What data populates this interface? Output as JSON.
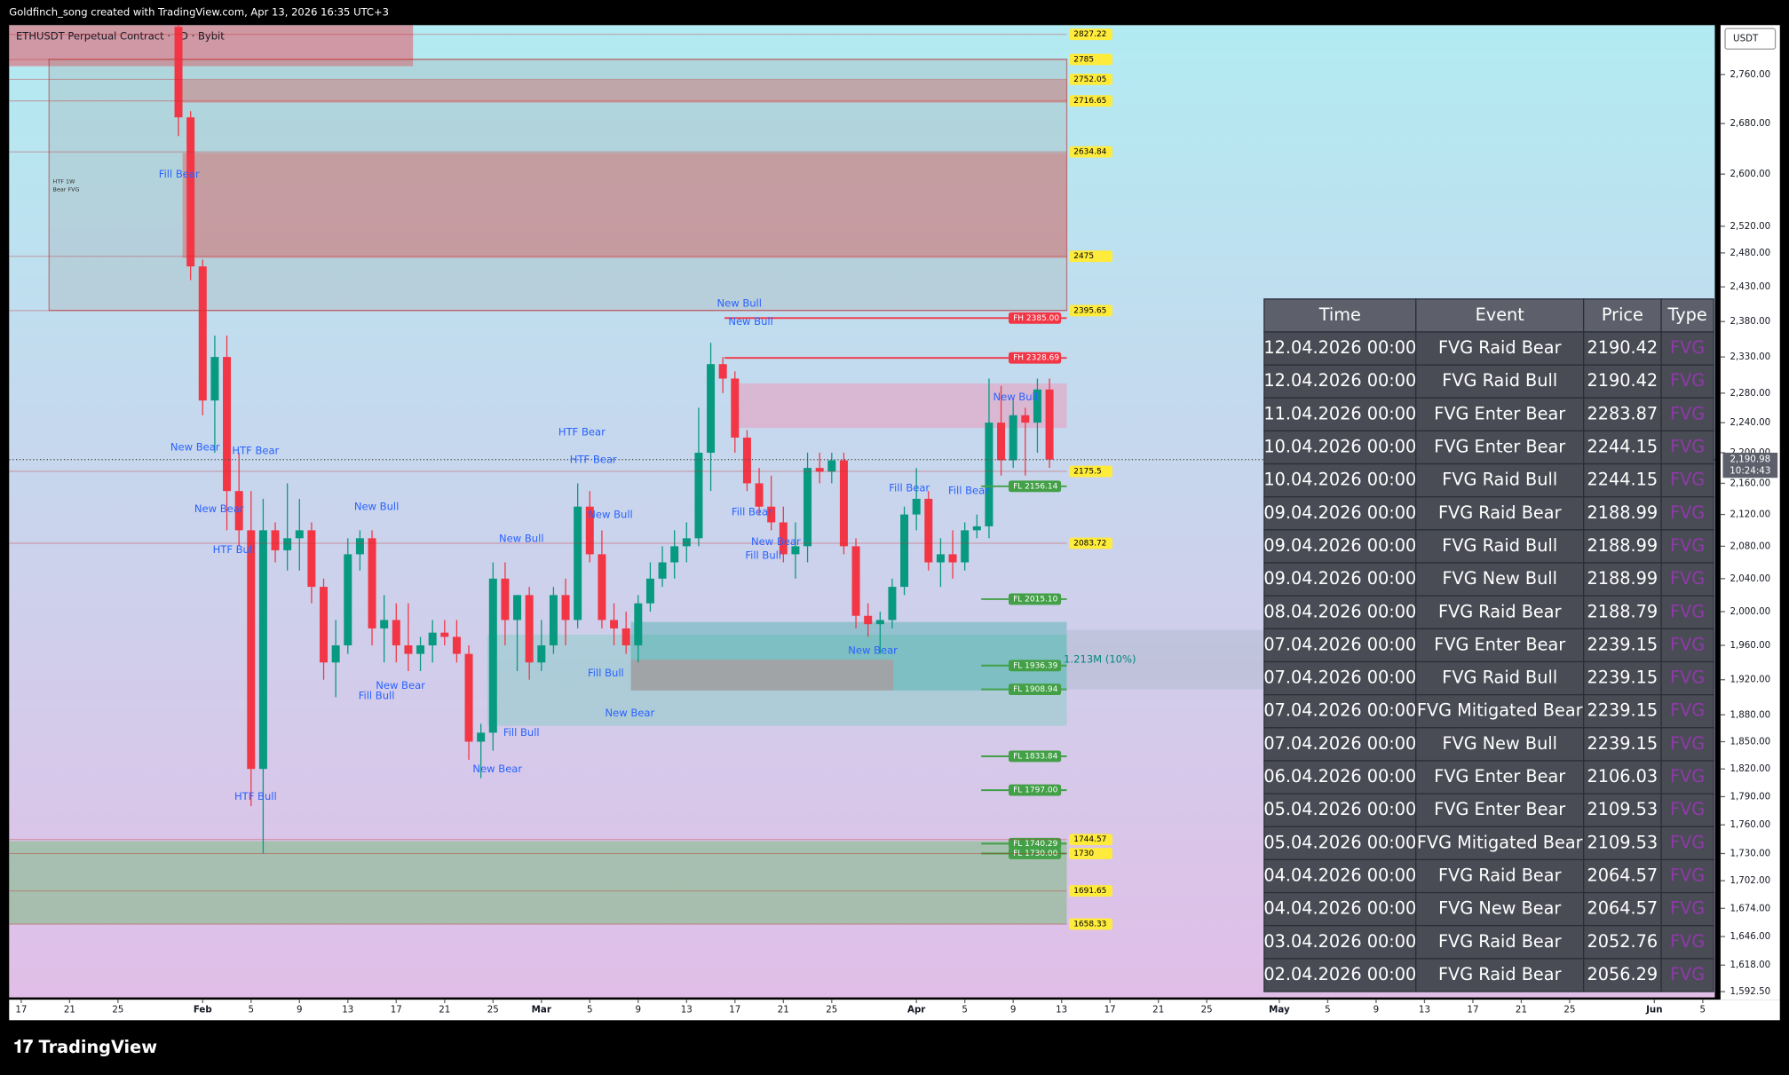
{
  "header": {
    "credit": "Goldfinch_song created with TradingView.com, Apr 13, 2026 16:35 UTC+3",
    "symbol": "ETHUSDT Perpetual Contract · 1D · Bybit",
    "currency": "USDT",
    "brand": "TradingView"
  },
  "chart_data": {
    "type": "candlestick",
    "log": true,
    "ylim": [
      1587,
      2843
    ],
    "xlim": [
      "2026-01-16",
      "2026-06-06"
    ],
    "up_color": "#089981",
    "down_color": "#f23645",
    "x": [
      "2026-01-30",
      "2026-01-31",
      "2026-02-01",
      "2026-02-02",
      "2026-02-03",
      "2026-02-04",
      "2026-02-05",
      "2026-02-06",
      "2026-02-07",
      "2026-02-08",
      "2026-02-09",
      "2026-02-10",
      "2026-02-11",
      "2026-02-12",
      "2026-02-13",
      "2026-02-14",
      "2026-02-15",
      "2026-02-16",
      "2026-02-17",
      "2026-02-18",
      "2026-02-19",
      "2026-02-20",
      "2026-02-21",
      "2026-02-22",
      "2026-02-23",
      "2026-02-24",
      "2026-02-25",
      "2026-02-26",
      "2026-02-27",
      "2026-02-28",
      "2026-03-01",
      "2026-03-02",
      "2026-03-03",
      "2026-03-04",
      "2026-03-05",
      "2026-03-06",
      "2026-03-07",
      "2026-03-08",
      "2026-03-09",
      "2026-03-10",
      "2026-03-11",
      "2026-03-12",
      "2026-03-13",
      "2026-03-14",
      "2026-03-15",
      "2026-03-16",
      "2026-03-17",
      "2026-03-18",
      "2026-03-19",
      "2026-03-20",
      "2026-03-21",
      "2026-03-22",
      "2026-03-23",
      "2026-03-24",
      "2026-03-25",
      "2026-03-26",
      "2026-03-27",
      "2026-03-28",
      "2026-03-29",
      "2026-03-30",
      "2026-03-31",
      "2026-04-01",
      "2026-04-02",
      "2026-04-03",
      "2026-04-04",
      "2026-04-05",
      "2026-04-06",
      "2026-04-07",
      "2026-04-08",
      "2026-04-09",
      "2026-04-10",
      "2026-04-11",
      "2026-04-12"
    ],
    "open": [
      2840,
      2690,
      2460,
      2270,
      2330,
      2150,
      2100,
      1820,
      2100,
      2075,
      2090,
      2100,
      2030,
      1940,
      1960,
      2070,
      2090,
      1980,
      1990,
      1960,
      1950,
      1960,
      1975,
      1970,
      1950,
      1850,
      1860,
      2040,
      1990,
      2020,
      1940,
      1960,
      2020,
      1990,
      2130,
      2070,
      1990,
      1980,
      1960,
      2010,
      2040,
      2060,
      2080,
      2090,
      2200,
      2320,
      2300,
      2220,
      2160,
      2130,
      2110,
      2070,
      2080,
      2180,
      2175,
      2190,
      2080,
      1995,
      1985,
      1990,
      2030,
      2120,
      2140,
      2060,
      2070,
      2060,
      2100,
      2105,
      2240,
      2190,
      2250,
      2240,
      2285
    ],
    "high": [
      2900,
      2700,
      2470,
      2360,
      2360,
      2200,
      2150,
      2140,
      2110,
      2160,
      2140,
      2110,
      2040,
      1990,
      2090,
      2100,
      2100,
      2020,
      2010,
      2010,
      1970,
      1990,
      1990,
      1990,
      1960,
      1870,
      2060,
      2060,
      2020,
      2030,
      1990,
      2030,
      2040,
      2160,
      2150,
      2100,
      2010,
      2000,
      2020,
      2060,
      2080,
      2100,
      2110,
      2260,
      2350,
      2330,
      2310,
      2230,
      2180,
      2170,
      2130,
      2110,
      2200,
      2200,
      2200,
      2200,
      2090,
      2010,
      2000,
      2040,
      2130,
      2180,
      2150,
      2090,
      2100,
      2110,
      2120,
      2300,
      2290,
      2270,
      2260,
      2300,
      2300
    ],
    "low": [
      2660,
      2440,
      2250,
      2200,
      2100,
      2080,
      1780,
      1730,
      2060,
      2050,
      2050,
      2010,
      1920,
      1900,
      1950,
      2050,
      1960,
      1940,
      1940,
      1930,
      1930,
      1940,
      1960,
      1940,
      1830,
      1810,
      1840,
      1960,
      1930,
      1920,
      1930,
      1950,
      1960,
      1980,
      2060,
      1980,
      1960,
      1950,
      1940,
      2000,
      2030,
      2040,
      2060,
      2080,
      2150,
      2280,
      2200,
      2150,
      2120,
      2100,
      2060,
      2040,
      2060,
      2160,
      2160,
      2070,
      1980,
      1970,
      1950,
      1980,
      2020,
      2100,
      2050,
      2030,
      2040,
      2050,
      2090,
      2090,
      2170,
      2180,
      2170,
      2200,
      2180
    ],
    "close": [
      2690,
      2460,
      2270,
      2330,
      2150,
      2100,
      1820,
      2100,
      2075,
      2090,
      2100,
      2030,
      1940,
      1960,
      2070,
      2090,
      1980,
      1990,
      1960,
      1950,
      1960,
      1975,
      1970,
      1950,
      1850,
      1860,
      2040,
      1990,
      2020,
      1940,
      1960,
      2020,
      1990,
      2130,
      2070,
      1990,
      1980,
      1960,
      2010,
      2040,
      2060,
      2080,
      2090,
      2200,
      2320,
      2300,
      2220,
      2160,
      2130,
      2110,
      2070,
      2080,
      2180,
      2175,
      2190,
      2080,
      1995,
      1985,
      1990,
      2030,
      2120,
      2140,
      2060,
      2070,
      2060,
      2100,
      2105,
      2240,
      2190,
      2250,
      2240,
      2285,
      2190.98
    ],
    "yticks": [
      {
        "value": 2760,
        "label": "2,760.00"
      },
      {
        "value": 2680,
        "label": "2,680.00"
      },
      {
        "value": 2600,
        "label": "2,600.00"
      },
      {
        "value": 2520,
        "label": "2,520.00"
      },
      {
        "value": 2480,
        "label": "2,480.00"
      },
      {
        "value": 2430,
        "label": "2,430.00"
      },
      {
        "value": 2380,
        "label": "2,380.00"
      },
      {
        "value": 2330,
        "label": "2,330.00"
      },
      {
        "value": 2280,
        "label": "2,280.00"
      },
      {
        "value": 2240,
        "label": "2,240.00"
      },
      {
        "value": 2200,
        "label": "2,200.00"
      },
      {
        "value": 2160,
        "label": "2,160.00"
      },
      {
        "value": 2120,
        "label": "2,120.00"
      },
      {
        "value": 2080,
        "label": "2,080.00"
      },
      {
        "value": 2040,
        "label": "2,040.00"
      },
      {
        "value": 2000,
        "label": "2,000.00"
      },
      {
        "value": 1960,
        "label": "1,960.00"
      },
      {
        "value": 1920,
        "label": "1,920.00"
      },
      {
        "value": 1880,
        "label": "1,880.00"
      },
      {
        "value": 1850,
        "label": "1,850.00"
      },
      {
        "value": 1820,
        "label": "1,820.00"
      },
      {
        "value": 1790,
        "label": "1,790.00"
      },
      {
        "value": 1760,
        "label": "1,760.00"
      },
      {
        "value": 1730,
        "label": "1,730.00"
      },
      {
        "value": 1702,
        "label": "1,702.00"
      },
      {
        "value": 1674,
        "label": "1,674.00"
      },
      {
        "value": 1646,
        "label": "1,646.00"
      },
      {
        "value": 1618,
        "label": "1,618.00"
      },
      {
        "value": 1592.5,
        "label": "1,592.50"
      }
    ],
    "xticks": [
      {
        "value": "2026-01-17",
        "label": "17"
      },
      {
        "value": "2026-01-21",
        "label": "21"
      },
      {
        "value": "2026-01-25",
        "label": "25"
      },
      {
        "value": "2026-02-01",
        "label": "Feb"
      },
      {
        "value": "2026-02-05",
        "label": "5"
      },
      {
        "value": "2026-02-09",
        "label": "9"
      },
      {
        "value": "2026-02-13",
        "label": "13"
      },
      {
        "value": "2026-02-17",
        "label": "17"
      },
      {
        "value": "2026-02-21",
        "label": "21"
      },
      {
        "value": "2026-02-25",
        "label": "25"
      },
      {
        "value": "2026-03-01",
        "label": "Mar"
      },
      {
        "value": "2026-03-05",
        "label": "5"
      },
      {
        "value": "2026-03-09",
        "label": "9"
      },
      {
        "value": "2026-03-13",
        "label": "13"
      },
      {
        "value": "2026-03-17",
        "label": "17"
      },
      {
        "value": "2026-03-21",
        "label": "21"
      },
      {
        "value": "2026-03-25",
        "label": "25"
      },
      {
        "value": "2026-04-01",
        "label": "Apr"
      },
      {
        "value": "2026-04-05",
        "label": "5"
      },
      {
        "value": "2026-04-09",
        "label": "9"
      },
      {
        "value": "2026-04-13",
        "label": "13"
      },
      {
        "value": "2026-04-17",
        "label": "17"
      },
      {
        "value": "2026-04-21",
        "label": "21"
      },
      {
        "value": "2026-04-25",
        "label": "25"
      },
      {
        "value": "2026-05-01",
        "label": "May"
      },
      {
        "value": "2026-05-05",
        "label": "5"
      },
      {
        "value": "2026-05-09",
        "label": "9"
      },
      {
        "value": "2026-05-13",
        "label": "13"
      },
      {
        "value": "2026-05-17",
        "label": "17"
      },
      {
        "value": "2026-05-21",
        "label": "21"
      },
      {
        "value": "2026-05-25",
        "label": "25"
      },
      {
        "value": "2026-06-01",
        "label": "Jun"
      },
      {
        "value": "2026-06-05",
        "label": "5"
      }
    ],
    "last_price": {
      "value": 2190.98,
      "label": "2,190.98"
    },
    "countdown": "10:24:43",
    "levels": [
      {
        "value": 2827.22,
        "color": "#ffeb3b"
      },
      {
        "value": 2785,
        "color": "#ffeb3b"
      },
      {
        "value": 2752.05,
        "color": "#ffeb3b"
      },
      {
        "value": 2716.65,
        "color": "#ffeb3b"
      },
      {
        "value": 2634.84,
        "color": "#ffeb3b"
      },
      {
        "value": 2475,
        "color": "#ffeb3b"
      },
      {
        "value": 2395.65,
        "color": "#ffeb3b"
      },
      {
        "value": 2385,
        "label": "FH 2385.00",
        "color": "#f23645"
      },
      {
        "value": 2328.69,
        "label": "FH 2328.69",
        "color": "#f23645"
      },
      {
        "value": 2175.5,
        "color": "#ffeb3b"
      },
      {
        "value": 2156.14,
        "label": "FL 2156.14",
        "color": "#43a047"
      },
      {
        "value": 2083.72,
        "color": "#ffeb3b"
      },
      {
        "value": 2015.1,
        "label": "FL 2015.10",
        "color": "#43a047"
      },
      {
        "value": 1936.39,
        "label": "FL 1936.39",
        "color": "#43a047"
      },
      {
        "value": 1908.94,
        "label": "FL 1908.94",
        "color": "#43a047"
      },
      {
        "value": 1833.84,
        "label": "FL 1833.84",
        "color": "#43a047"
      },
      {
        "value": 1797,
        "label": "FL 1797.00",
        "color": "#43a047"
      },
      {
        "value": 1740.29,
        "label": "FL 1740.29",
        "color": "#43a047"
      },
      {
        "value": 1730,
        "label": "FL 1730.00",
        "color": "#43a047"
      },
      {
        "value": 1744.57,
        "color": "#ffeb3b"
      },
      {
        "value": 1730,
        "color": "#ffeb3b"
      },
      {
        "value": 1691.65,
        "color": "#ffeb3b"
      },
      {
        "value": 1658.33,
        "color": "#ffeb3b"
      }
    ],
    "annotations": [
      "New Bull",
      "New Bull",
      "HTF Bear",
      "HTF Bear",
      "HTF Bear",
      "New Bear",
      "New Bear",
      "New Bull",
      "New Bull",
      "Fill Bull",
      "New Bear",
      "Fill Bull",
      "New Bear",
      "Fill Bull",
      "New Bear",
      "HTF Bull",
      "Fill Bear",
      "Fill Bull",
      "New Bear",
      "Fill Bear",
      "Fill Bear",
      "New Bull",
      "New Bear",
      "Fill Bear",
      "HTF 1W",
      "Bear FVG",
      "1.213M (10%)",
      "HTF Bull",
      "New Bull"
    ]
  },
  "table": {
    "columns": [
      "Time",
      "Event",
      "Price",
      "Type"
    ],
    "rows": [
      [
        "12.04.2026 00:00",
        "FVG Raid Bear",
        "2190.42",
        "FVG"
      ],
      [
        "12.04.2026 00:00",
        "FVG Raid Bull",
        "2190.42",
        "FVG"
      ],
      [
        "11.04.2026 00:00",
        "FVG Enter Bear",
        "2283.87",
        "FVG"
      ],
      [
        "10.04.2026 00:00",
        "FVG Enter Bear",
        "2244.15",
        "FVG"
      ],
      [
        "10.04.2026 00:00",
        "FVG Raid Bull",
        "2244.15",
        "FVG"
      ],
      [
        "09.04.2026 00:00",
        "FVG Raid Bear",
        "2188.99",
        "FVG"
      ],
      [
        "09.04.2026 00:00",
        "FVG Raid Bull",
        "2188.99",
        "FVG"
      ],
      [
        "09.04.2026 00:00",
        "FVG New Bull",
        "2188.99",
        "FVG"
      ],
      [
        "08.04.2026 00:00",
        "FVG Raid Bear",
        "2188.79",
        "FVG"
      ],
      [
        "07.04.2026 00:00",
        "FVG Enter Bear",
        "2239.15",
        "FVG"
      ],
      [
        "07.04.2026 00:00",
        "FVG Raid Bull",
        "2239.15",
        "FVG"
      ],
      [
        "07.04.2026 00:00",
        "FVG Mitigated Bear",
        "2239.15",
        "FVG"
      ],
      [
        "07.04.2026 00:00",
        "FVG New Bull",
        "2239.15",
        "FVG"
      ],
      [
        "06.04.2026 00:00",
        "FVG Enter Bear",
        "2106.03",
        "FVG"
      ],
      [
        "05.04.2026 00:00",
        "FVG Enter Bear",
        "2109.53",
        "FVG"
      ],
      [
        "05.04.2026 00:00",
        "FVG Mitigated Bear",
        "2109.53",
        "FVG"
      ],
      [
        "04.04.2026 00:00",
        "FVG Raid Bear",
        "2064.57",
        "FVG"
      ],
      [
        "04.04.2026 00:00",
        "FVG New Bear",
        "2064.57",
        "FVG"
      ],
      [
        "03.04.2026 00:00",
        "FVG Raid Bear",
        "2052.76",
        "FVG"
      ],
      [
        "02.04.2026 00:00",
        "FVG Raid Bear",
        "2056.29",
        "FVG"
      ]
    ]
  }
}
